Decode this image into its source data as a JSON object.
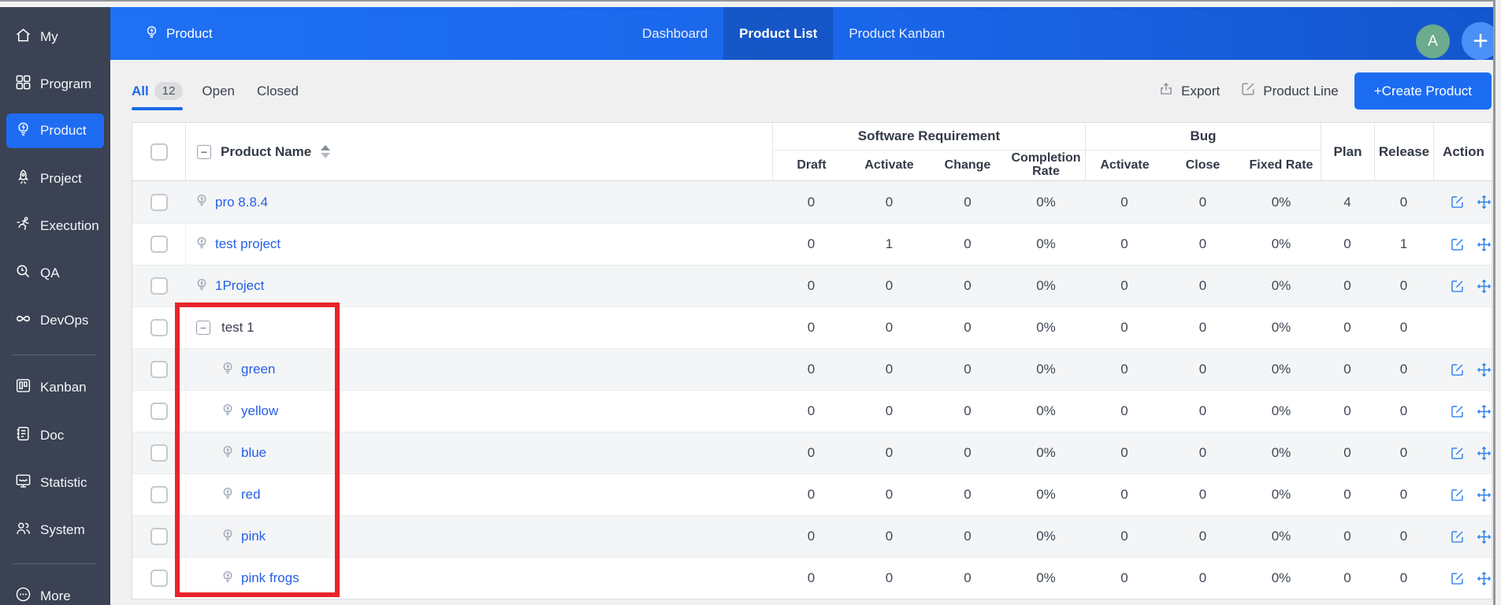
{
  "colors": {
    "topbar_blue": "#1c6cf2",
    "topbar_blue_dark": "#1356cd",
    "sidebar_bg": "#3a4253",
    "active_item_blue": "#1f6cf2",
    "link_blue": "#2560e6",
    "action_icon_blue": "#2f82ee",
    "avatar_green": "#6cab8e",
    "annotation_red": "#e8232b",
    "content_bg": "#f0f0f1"
  },
  "sidebar": {
    "items": [
      {
        "label": "My",
        "icon": "home-icon"
      },
      {
        "label": "Program",
        "icon": "grid-icon"
      },
      {
        "label": "Product",
        "icon": "bulb-icon",
        "active": true
      },
      {
        "label": "Project",
        "icon": "rocket-icon"
      },
      {
        "label": "Execution",
        "icon": "runner-icon"
      },
      {
        "label": "QA",
        "icon": "magnifier-icon"
      },
      {
        "label": "DevOps",
        "icon": "infinity-icon"
      },
      {
        "label": "Kanban",
        "icon": "kanban-icon"
      },
      {
        "label": "Doc",
        "icon": "doc-icon"
      },
      {
        "label": "Statistic",
        "icon": "monitor-icon"
      },
      {
        "label": "System",
        "icon": "users-icon"
      },
      {
        "label": "More",
        "icon": "more-icon"
      }
    ]
  },
  "topbar": {
    "title": "Product",
    "tabs": [
      {
        "label": "Dashboard",
        "active": false
      },
      {
        "label": "Product List",
        "active": true
      },
      {
        "label": "Product Kanban",
        "active": false
      }
    ],
    "avatar_letter": "A",
    "plus_label": "+"
  },
  "toolbar": {
    "filters": [
      {
        "label": "All",
        "count": "12",
        "active": true
      },
      {
        "label": "Open",
        "active": false
      },
      {
        "label": "Closed",
        "active": false
      }
    ],
    "export_label": "Export",
    "product_line_label": "Product Line",
    "create_label": "+Create Product"
  },
  "table": {
    "group_headers": [
      {
        "label": "Software Requirement",
        "span": 4
      },
      {
        "label": "Bug",
        "span": 3
      }
    ],
    "name_header": "Product Name",
    "sub_headers": [
      "Draft",
      "Activate",
      "Change",
      "Completion Rate",
      "Activate",
      "Close",
      "Fixed Rate"
    ],
    "flat_headers": [
      "Plan",
      "Release",
      "Action"
    ],
    "rows": [
      {
        "name": "pro 8.8.4",
        "type": "product",
        "values": [
          "0",
          "0",
          "0",
          "0%",
          "0",
          "0",
          "0%",
          "4",
          "0"
        ],
        "actions": true
      },
      {
        "name": "test project",
        "type": "product",
        "values": [
          "0",
          "1",
          "0",
          "0%",
          "0",
          "0",
          "0%",
          "0",
          "1"
        ],
        "actions": true
      },
      {
        "name": "1Project",
        "type": "product",
        "values": [
          "0",
          "0",
          "0",
          "0%",
          "0",
          "0",
          "0%",
          "0",
          "0"
        ],
        "actions": true
      },
      {
        "name": "test 1",
        "type": "group",
        "values": [
          "0",
          "0",
          "0",
          "0%",
          "0",
          "0",
          "0%",
          "0",
          "0"
        ],
        "actions": false
      },
      {
        "name": "green",
        "type": "child",
        "values": [
          "0",
          "0",
          "0",
          "0%",
          "0",
          "0",
          "0%",
          "0",
          "0"
        ],
        "actions": true
      },
      {
        "name": "yellow",
        "type": "child",
        "values": [
          "0",
          "0",
          "0",
          "0%",
          "0",
          "0",
          "0%",
          "0",
          "0"
        ],
        "actions": true
      },
      {
        "name": "blue",
        "type": "child",
        "values": [
          "0",
          "0",
          "0",
          "0%",
          "0",
          "0",
          "0%",
          "0",
          "0"
        ],
        "actions": true
      },
      {
        "name": "red",
        "type": "child",
        "values": [
          "0",
          "0",
          "0",
          "0%",
          "0",
          "0",
          "0%",
          "0",
          "0"
        ],
        "actions": true
      },
      {
        "name": "pink",
        "type": "child",
        "values": [
          "0",
          "0",
          "0",
          "0%",
          "0",
          "0",
          "0%",
          "0",
          "0"
        ],
        "actions": true
      },
      {
        "name": "pink frogs",
        "type": "child",
        "values": [
          "0",
          "0",
          "0",
          "0%",
          "0",
          "0",
          "0%",
          "0",
          "0"
        ],
        "actions": true
      }
    ],
    "collapse_glyph": "−"
  },
  "annotation": {
    "color": "#e8232b"
  }
}
